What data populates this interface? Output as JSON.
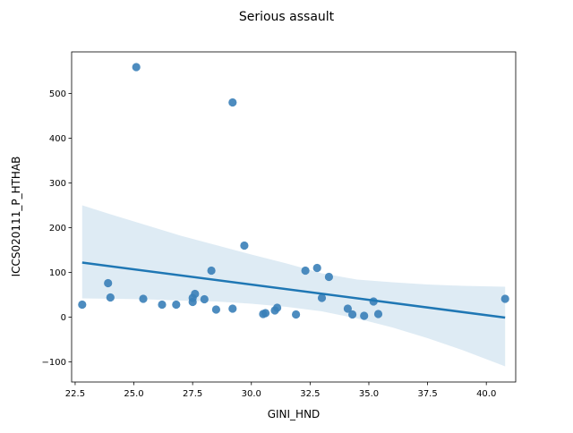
{
  "chart_data": {
    "type": "scatter",
    "title": "Serious assault",
    "xlabel": "GINI_HND",
    "ylabel": "ICCS020111_P_HTHAB",
    "xlim": [
      22.35,
      41.25
    ],
    "ylim": [
      -145,
      593
    ],
    "xticks": [
      22.5,
      25.0,
      27.5,
      30.0,
      32.5,
      35.0,
      37.5,
      40.0
    ],
    "xtick_labels": [
      "22.5",
      "25.0",
      "27.5",
      "30.0",
      "32.5",
      "35.0",
      "37.5",
      "40.0"
    ],
    "yticks": [
      -100,
      0,
      100,
      200,
      300,
      400,
      500
    ],
    "ytick_labels": [
      "−100",
      "0",
      "100",
      "200",
      "300",
      "400",
      "500"
    ],
    "grid": false,
    "points": [
      {
        "x": 22.8,
        "y": 28
      },
      {
        "x": 23.9,
        "y": 76
      },
      {
        "x": 24.0,
        "y": 44
      },
      {
        "x": 25.1,
        "y": 559
      },
      {
        "x": 25.4,
        "y": 41
      },
      {
        "x": 26.2,
        "y": 28
      },
      {
        "x": 26.8,
        "y": 28
      },
      {
        "x": 27.5,
        "y": 34
      },
      {
        "x": 27.5,
        "y": 43
      },
      {
        "x": 27.6,
        "y": 52
      },
      {
        "x": 28.0,
        "y": 40
      },
      {
        "x": 28.3,
        "y": 104
      },
      {
        "x": 28.5,
        "y": 17
      },
      {
        "x": 29.2,
        "y": 480
      },
      {
        "x": 29.2,
        "y": 19
      },
      {
        "x": 29.7,
        "y": 160
      },
      {
        "x": 30.5,
        "y": 7
      },
      {
        "x": 30.6,
        "y": 9
      },
      {
        "x": 31.0,
        "y": 15
      },
      {
        "x": 31.1,
        "y": 21
      },
      {
        "x": 31.9,
        "y": 6
      },
      {
        "x": 32.3,
        "y": 104
      },
      {
        "x": 32.8,
        "y": 110
      },
      {
        "x": 33.0,
        "y": 43
      },
      {
        "x": 33.3,
        "y": 90
      },
      {
        "x": 34.1,
        "y": 19
      },
      {
        "x": 34.3,
        "y": 6
      },
      {
        "x": 34.8,
        "y": 3
      },
      {
        "x": 35.2,
        "y": 35
      },
      {
        "x": 35.4,
        "y": 7
      },
      {
        "x": 40.8,
        "y": 41
      }
    ],
    "regression_line": {
      "x": [
        22.8,
        40.8
      ],
      "y": [
        122,
        -1
      ]
    },
    "confidence_band": {
      "x": [
        22.8,
        24.0,
        25.5,
        27.0,
        28.5,
        30.0,
        31.5,
        33.0,
        34.5,
        36.0,
        37.5,
        39.0,
        40.8
      ],
      "upper": [
        250,
        230,
        206,
        182,
        161,
        140,
        120,
        98,
        84,
        78,
        73,
        70,
        68
      ],
      "lower": [
        42,
        41,
        40,
        37,
        35,
        30,
        23,
        13,
        -3,
        -23,
        -47,
        -74,
        -110
      ]
    },
    "colors": {
      "points": "#3a7fb8",
      "line": "#1f77b4",
      "band": "#1f77b4"
    }
  }
}
